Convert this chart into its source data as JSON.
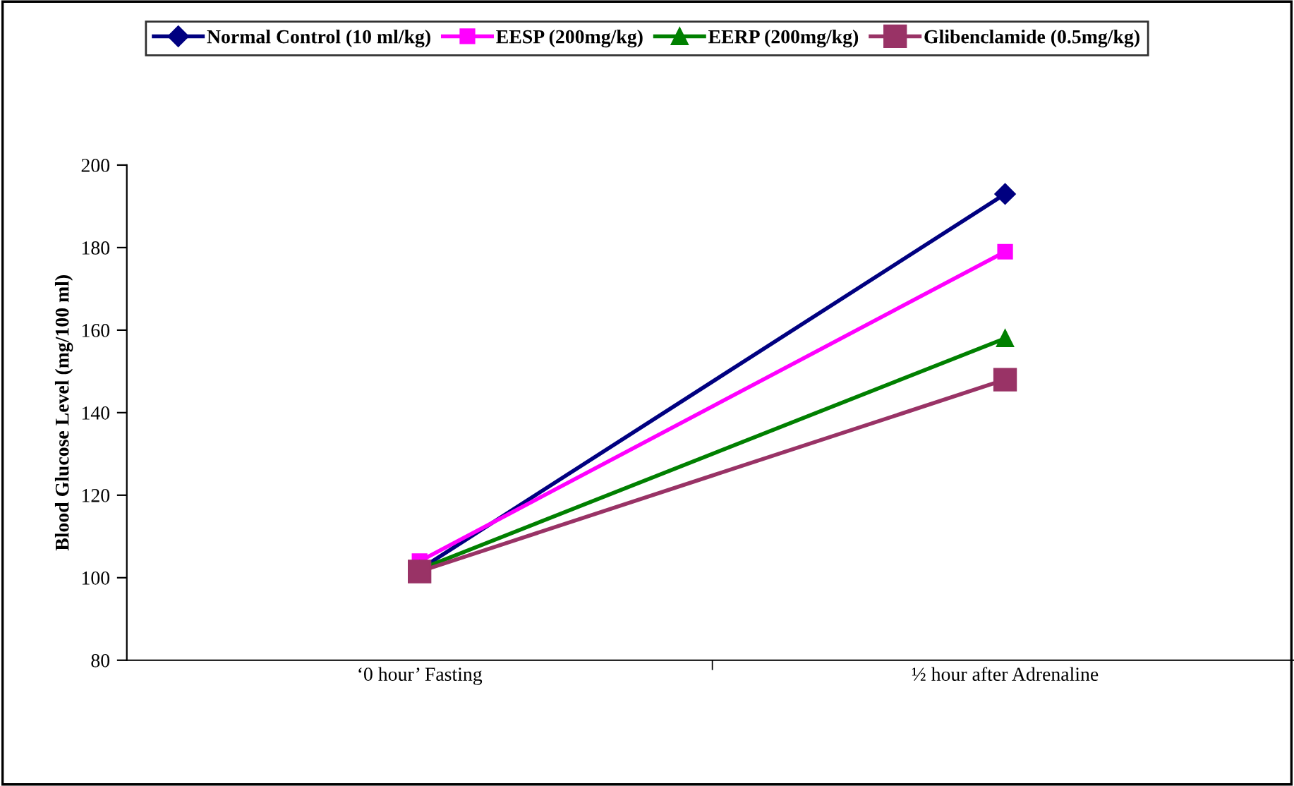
{
  "chart_data": {
    "type": "line",
    "ylabel": "Blood Glucose Level (mg/100 ml)",
    "categories": [
      "‘0 hour’ Fasting",
      "½ hour after Adrenaline"
    ],
    "ylim": [
      80,
      200
    ],
    "yticks": [
      80,
      100,
      120,
      140,
      160,
      180,
      200
    ],
    "grid": false,
    "legend": "top",
    "line_style": "solid",
    "series": [
      {
        "name": "Normal Control (10 ml/kg)",
        "color": "#000080",
        "marker": "diamond",
        "values": [
          102,
          193
        ]
      },
      {
        "name": "EESP (200mg/kg)",
        "color": "#ff00ff",
        "marker": "square",
        "values": [
          104,
          179
        ]
      },
      {
        "name": "EERP (200mg/kg)",
        "color": "#008000",
        "marker": "triangle",
        "values": [
          102,
          158
        ]
      },
      {
        "name": "Glibenclamide (0.5mg/kg)",
        "color": "#993366",
        "marker": "square",
        "values": [
          101.5,
          148
        ]
      }
    ]
  }
}
